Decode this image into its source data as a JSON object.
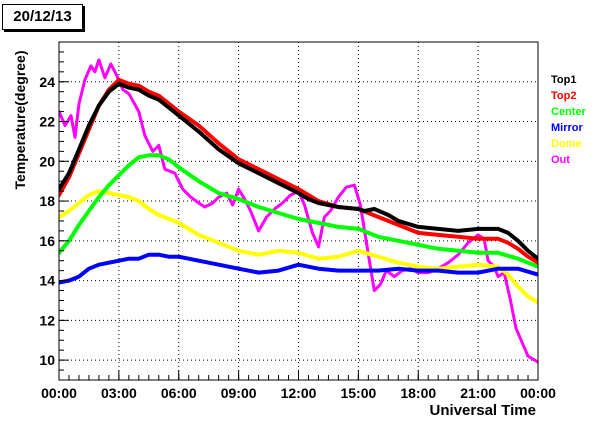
{
  "date_label": "20/12/13",
  "chart_data": {
    "type": "line",
    "title": "",
    "xlabel": "Universal Time",
    "ylabel": "Temperature(degree)",
    "xlim": [
      0,
      24
    ],
    "ylim": [
      9,
      26
    ],
    "grid": true,
    "legend_position": "right",
    "x_ticks": [
      "00:00",
      "03:00",
      "06:00",
      "09:00",
      "12:00",
      "15:00",
      "18:00",
      "21:00",
      "00:00"
    ],
    "y_ticks": [
      "10",
      "12",
      "14",
      "16",
      "18",
      "20",
      "22",
      "24"
    ],
    "series": [
      {
        "name": "Top1",
        "color": "#000000",
        "points": [
          [
            0,
            18.6
          ],
          [
            0.5,
            19.4
          ],
          [
            1,
            20.6
          ],
          [
            1.5,
            21.8
          ],
          [
            2,
            22.8
          ],
          [
            2.5,
            23.5
          ],
          [
            3,
            23.9
          ],
          [
            3.5,
            23.7
          ],
          [
            4,
            23.6
          ],
          [
            4.5,
            23.3
          ],
          [
            5,
            23.1
          ],
          [
            5.5,
            22.7
          ],
          [
            6,
            22.3
          ],
          [
            7,
            21.5
          ],
          [
            8,
            20.6
          ],
          [
            9,
            19.9
          ],
          [
            10,
            19.4
          ],
          [
            11,
            18.9
          ],
          [
            12,
            18.4
          ],
          [
            12.5,
            18.1
          ],
          [
            13,
            17.9
          ],
          [
            14,
            17.7
          ],
          [
            15,
            17.6
          ],
          [
            15.3,
            17.5
          ],
          [
            15.8,
            17.6
          ],
          [
            16.5,
            17.3
          ],
          [
            17,
            17.0
          ],
          [
            18,
            16.7
          ],
          [
            19,
            16.6
          ],
          [
            20,
            16.5
          ],
          [
            21,
            16.6
          ],
          [
            22,
            16.6
          ],
          [
            22.5,
            16.4
          ],
          [
            23,
            16.0
          ],
          [
            23.5,
            15.5
          ],
          [
            24,
            15.1
          ]
        ]
      },
      {
        "name": "Top2",
        "color": "#ff0000",
        "points": [
          [
            0,
            18.3
          ],
          [
            0.5,
            19.2
          ],
          [
            1,
            20.4
          ],
          [
            1.5,
            21.6
          ],
          [
            2,
            22.8
          ],
          [
            2.5,
            23.6
          ],
          [
            3,
            24.1
          ],
          [
            3.5,
            23.9
          ],
          [
            4,
            23.8
          ],
          [
            4.5,
            23.5
          ],
          [
            5,
            23.3
          ],
          [
            5.5,
            22.9
          ],
          [
            6,
            22.5
          ],
          [
            7,
            21.8
          ],
          [
            8,
            20.9
          ],
          [
            9,
            20.1
          ],
          [
            10,
            19.6
          ],
          [
            11,
            19.1
          ],
          [
            12,
            18.6
          ],
          [
            12.5,
            18.3
          ],
          [
            13,
            18.0
          ],
          [
            14,
            17.7
          ],
          [
            15,
            17.6
          ],
          [
            15.5,
            17.4
          ],
          [
            16,
            17.2
          ],
          [
            17,
            16.8
          ],
          [
            18,
            16.4
          ],
          [
            19,
            16.3
          ],
          [
            20,
            16.2
          ],
          [
            21,
            16.1
          ],
          [
            22,
            16.1
          ],
          [
            22.5,
            15.9
          ],
          [
            23,
            15.6
          ],
          [
            23.5,
            15.2
          ],
          [
            24,
            14.9
          ]
        ]
      },
      {
        "name": "Center",
        "color": "#00ff00",
        "points": [
          [
            0,
            15.4
          ],
          [
            0.5,
            16.0
          ],
          [
            1,
            16.8
          ],
          [
            1.5,
            17.5
          ],
          [
            2,
            18.2
          ],
          [
            2.5,
            18.8
          ],
          [
            3,
            19.3
          ],
          [
            3.5,
            19.8
          ],
          [
            4,
            20.2
          ],
          [
            4.5,
            20.3
          ],
          [
            5,
            20.3
          ],
          [
            5.5,
            20.1
          ],
          [
            6,
            19.7
          ],
          [
            7,
            19.0
          ],
          [
            8,
            18.4
          ],
          [
            9,
            18.1
          ],
          [
            10,
            17.7
          ],
          [
            11,
            17.4
          ],
          [
            12,
            17.1
          ],
          [
            13,
            16.9
          ],
          [
            14,
            16.7
          ],
          [
            15,
            16.6
          ],
          [
            15.5,
            16.4
          ],
          [
            16,
            16.2
          ],
          [
            17,
            16.0
          ],
          [
            18,
            15.8
          ],
          [
            19,
            15.6
          ],
          [
            20,
            15.5
          ],
          [
            21,
            15.4
          ],
          [
            22,
            15.4
          ],
          [
            23,
            15.1
          ],
          [
            24,
            14.7
          ]
        ]
      },
      {
        "name": "Mirror",
        "color": "#0000ff",
        "points": [
          [
            0,
            13.9
          ],
          [
            0.5,
            14.0
          ],
          [
            1,
            14.2
          ],
          [
            1.5,
            14.6
          ],
          [
            2,
            14.8
          ],
          [
            2.5,
            14.9
          ],
          [
            3,
            15.0
          ],
          [
            3.5,
            15.1
          ],
          [
            4,
            15.1
          ],
          [
            4.5,
            15.3
          ],
          [
            5,
            15.3
          ],
          [
            5.5,
            15.2
          ],
          [
            6,
            15.2
          ],
          [
            7,
            15.0
          ],
          [
            8,
            14.8
          ],
          [
            9,
            14.6
          ],
          [
            10,
            14.4
          ],
          [
            11,
            14.5
          ],
          [
            12,
            14.8
          ],
          [
            13,
            14.6
          ],
          [
            14,
            14.5
          ],
          [
            15,
            14.5
          ],
          [
            16,
            14.5
          ],
          [
            17,
            14.6
          ],
          [
            18,
            14.5
          ],
          [
            19,
            14.5
          ],
          [
            20,
            14.4
          ],
          [
            21,
            14.4
          ],
          [
            22,
            14.6
          ],
          [
            23,
            14.6
          ],
          [
            24,
            14.3
          ]
        ]
      },
      {
        "name": "Dome",
        "color": "#ffff00",
        "points": [
          [
            0,
            17.2
          ],
          [
            0.5,
            17.5
          ],
          [
            1,
            17.9
          ],
          [
            1.5,
            18.3
          ],
          [
            2,
            18.5
          ],
          [
            2.5,
            18.4
          ],
          [
            3,
            18.3
          ],
          [
            3.5,
            18.2
          ],
          [
            4,
            18.0
          ],
          [
            4.5,
            17.6
          ],
          [
            5,
            17.3
          ],
          [
            6,
            16.9
          ],
          [
            7,
            16.3
          ],
          [
            8,
            15.9
          ],
          [
            9,
            15.5
          ],
          [
            10,
            15.3
          ],
          [
            11,
            15.5
          ],
          [
            12,
            15.4
          ],
          [
            13,
            15.1
          ],
          [
            14,
            15.2
          ],
          [
            15,
            15.5
          ],
          [
            16,
            15.2
          ],
          [
            17,
            14.9
          ],
          [
            18,
            14.7
          ],
          [
            19,
            14.6
          ],
          [
            20,
            14.7
          ],
          [
            21,
            14.8
          ],
          [
            22,
            14.7
          ],
          [
            22.5,
            14.3
          ],
          [
            23,
            13.7
          ],
          [
            23.5,
            13.2
          ],
          [
            24,
            12.9
          ]
        ]
      },
      {
        "name": "Out",
        "color": "#ff00ff",
        "points": [
          [
            0,
            22.5
          ],
          [
            0.3,
            21.8
          ],
          [
            0.6,
            22.3
          ],
          [
            0.8,
            21.2
          ],
          [
            1,
            22.9
          ],
          [
            1.3,
            24.1
          ],
          [
            1.6,
            24.8
          ],
          [
            1.8,
            24.5
          ],
          [
            2,
            25.1
          ],
          [
            2.3,
            24.2
          ],
          [
            2.6,
            24.9
          ],
          [
            2.9,
            24.3
          ],
          [
            3.2,
            23.6
          ],
          [
            3.5,
            23.4
          ],
          [
            4,
            22.5
          ],
          [
            4.3,
            21.3
          ],
          [
            4.7,
            20.5
          ],
          [
            5,
            20.8
          ],
          [
            5.3,
            19.6
          ],
          [
            5.8,
            19.4
          ],
          [
            6.2,
            18.6
          ],
          [
            6.6,
            18.2
          ],
          [
            7,
            17.9
          ],
          [
            7.3,
            17.7
          ],
          [
            7.7,
            17.9
          ],
          [
            8,
            18.2
          ],
          [
            8.4,
            18.4
          ],
          [
            8.7,
            17.8
          ],
          [
            9,
            18.6
          ],
          [
            9.3,
            18.1
          ],
          [
            9.6,
            17.5
          ],
          [
            10,
            16.5
          ],
          [
            10.4,
            17.2
          ],
          [
            10.8,
            17.6
          ],
          [
            11.2,
            17.9
          ],
          [
            11.6,
            18.3
          ],
          [
            12,
            18.5
          ],
          [
            12.3,
            17.8
          ],
          [
            12.7,
            16.4
          ],
          [
            13,
            15.7
          ],
          [
            13.3,
            17.2
          ],
          [
            13.6,
            17.5
          ],
          [
            14,
            18.2
          ],
          [
            14.4,
            18.7
          ],
          [
            14.8,
            18.8
          ],
          [
            15.1,
            17.8
          ],
          [
            15.5,
            15.3
          ],
          [
            15.8,
            13.5
          ],
          [
            16.1,
            13.8
          ],
          [
            16.4,
            14.5
          ],
          [
            16.8,
            14.2
          ],
          [
            17.2,
            14.5
          ],
          [
            17.6,
            14.6
          ],
          [
            18,
            14.4
          ],
          [
            18.5,
            14.4
          ],
          [
            19,
            14.6
          ],
          [
            19.5,
            14.9
          ],
          [
            20,
            15.3
          ],
          [
            20.5,
            15.9
          ],
          [
            21,
            16.3
          ],
          [
            21.3,
            16.1
          ],
          [
            21.5,
            15.0
          ],
          [
            21.8,
            14.7
          ],
          [
            22,
            14.2
          ],
          [
            22.3,
            14.4
          ],
          [
            22.6,
            13.1
          ],
          [
            22.9,
            11.6
          ],
          [
            23.2,
            10.9
          ],
          [
            23.5,
            10.2
          ],
          [
            24,
            9.9
          ],
          [
            24.3,
            9.5
          ]
        ]
      }
    ]
  }
}
